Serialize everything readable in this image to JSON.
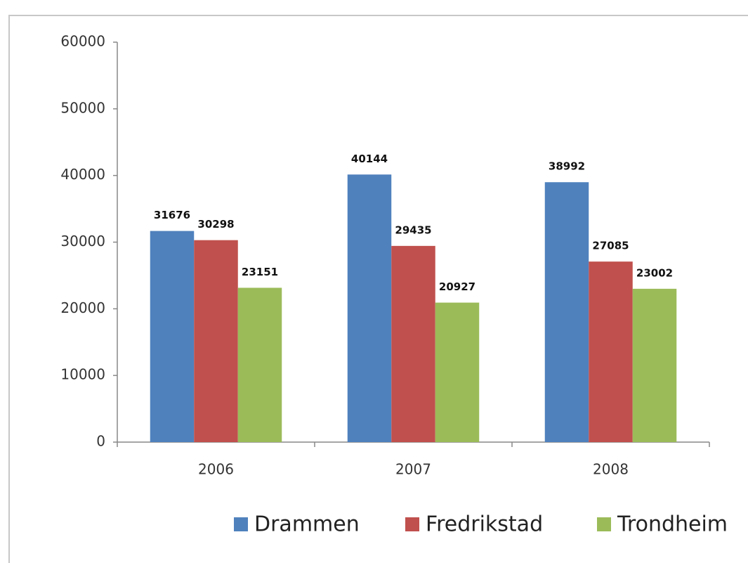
{
  "chart_data": {
    "type": "bar",
    "categories": [
      "2006",
      "2007",
      "2008"
    ],
    "series": [
      {
        "name": "Drammen",
        "color": "#4f81bd",
        "values": [
          31676,
          40144,
          38992
        ]
      },
      {
        "name": "Fredrikstad",
        "color": "#c0504d",
        "values": [
          30298,
          29435,
          27085
        ]
      },
      {
        "name": "Trondheim",
        "color": "#9bbb59",
        "values": [
          23151,
          20927,
          23002
        ]
      }
    ],
    "ylim": [
      0,
      60000
    ],
    "yticks": [
      0,
      10000,
      20000,
      30000,
      40000,
      50000,
      60000
    ],
    "grid": false,
    "legend": "bottom"
  }
}
